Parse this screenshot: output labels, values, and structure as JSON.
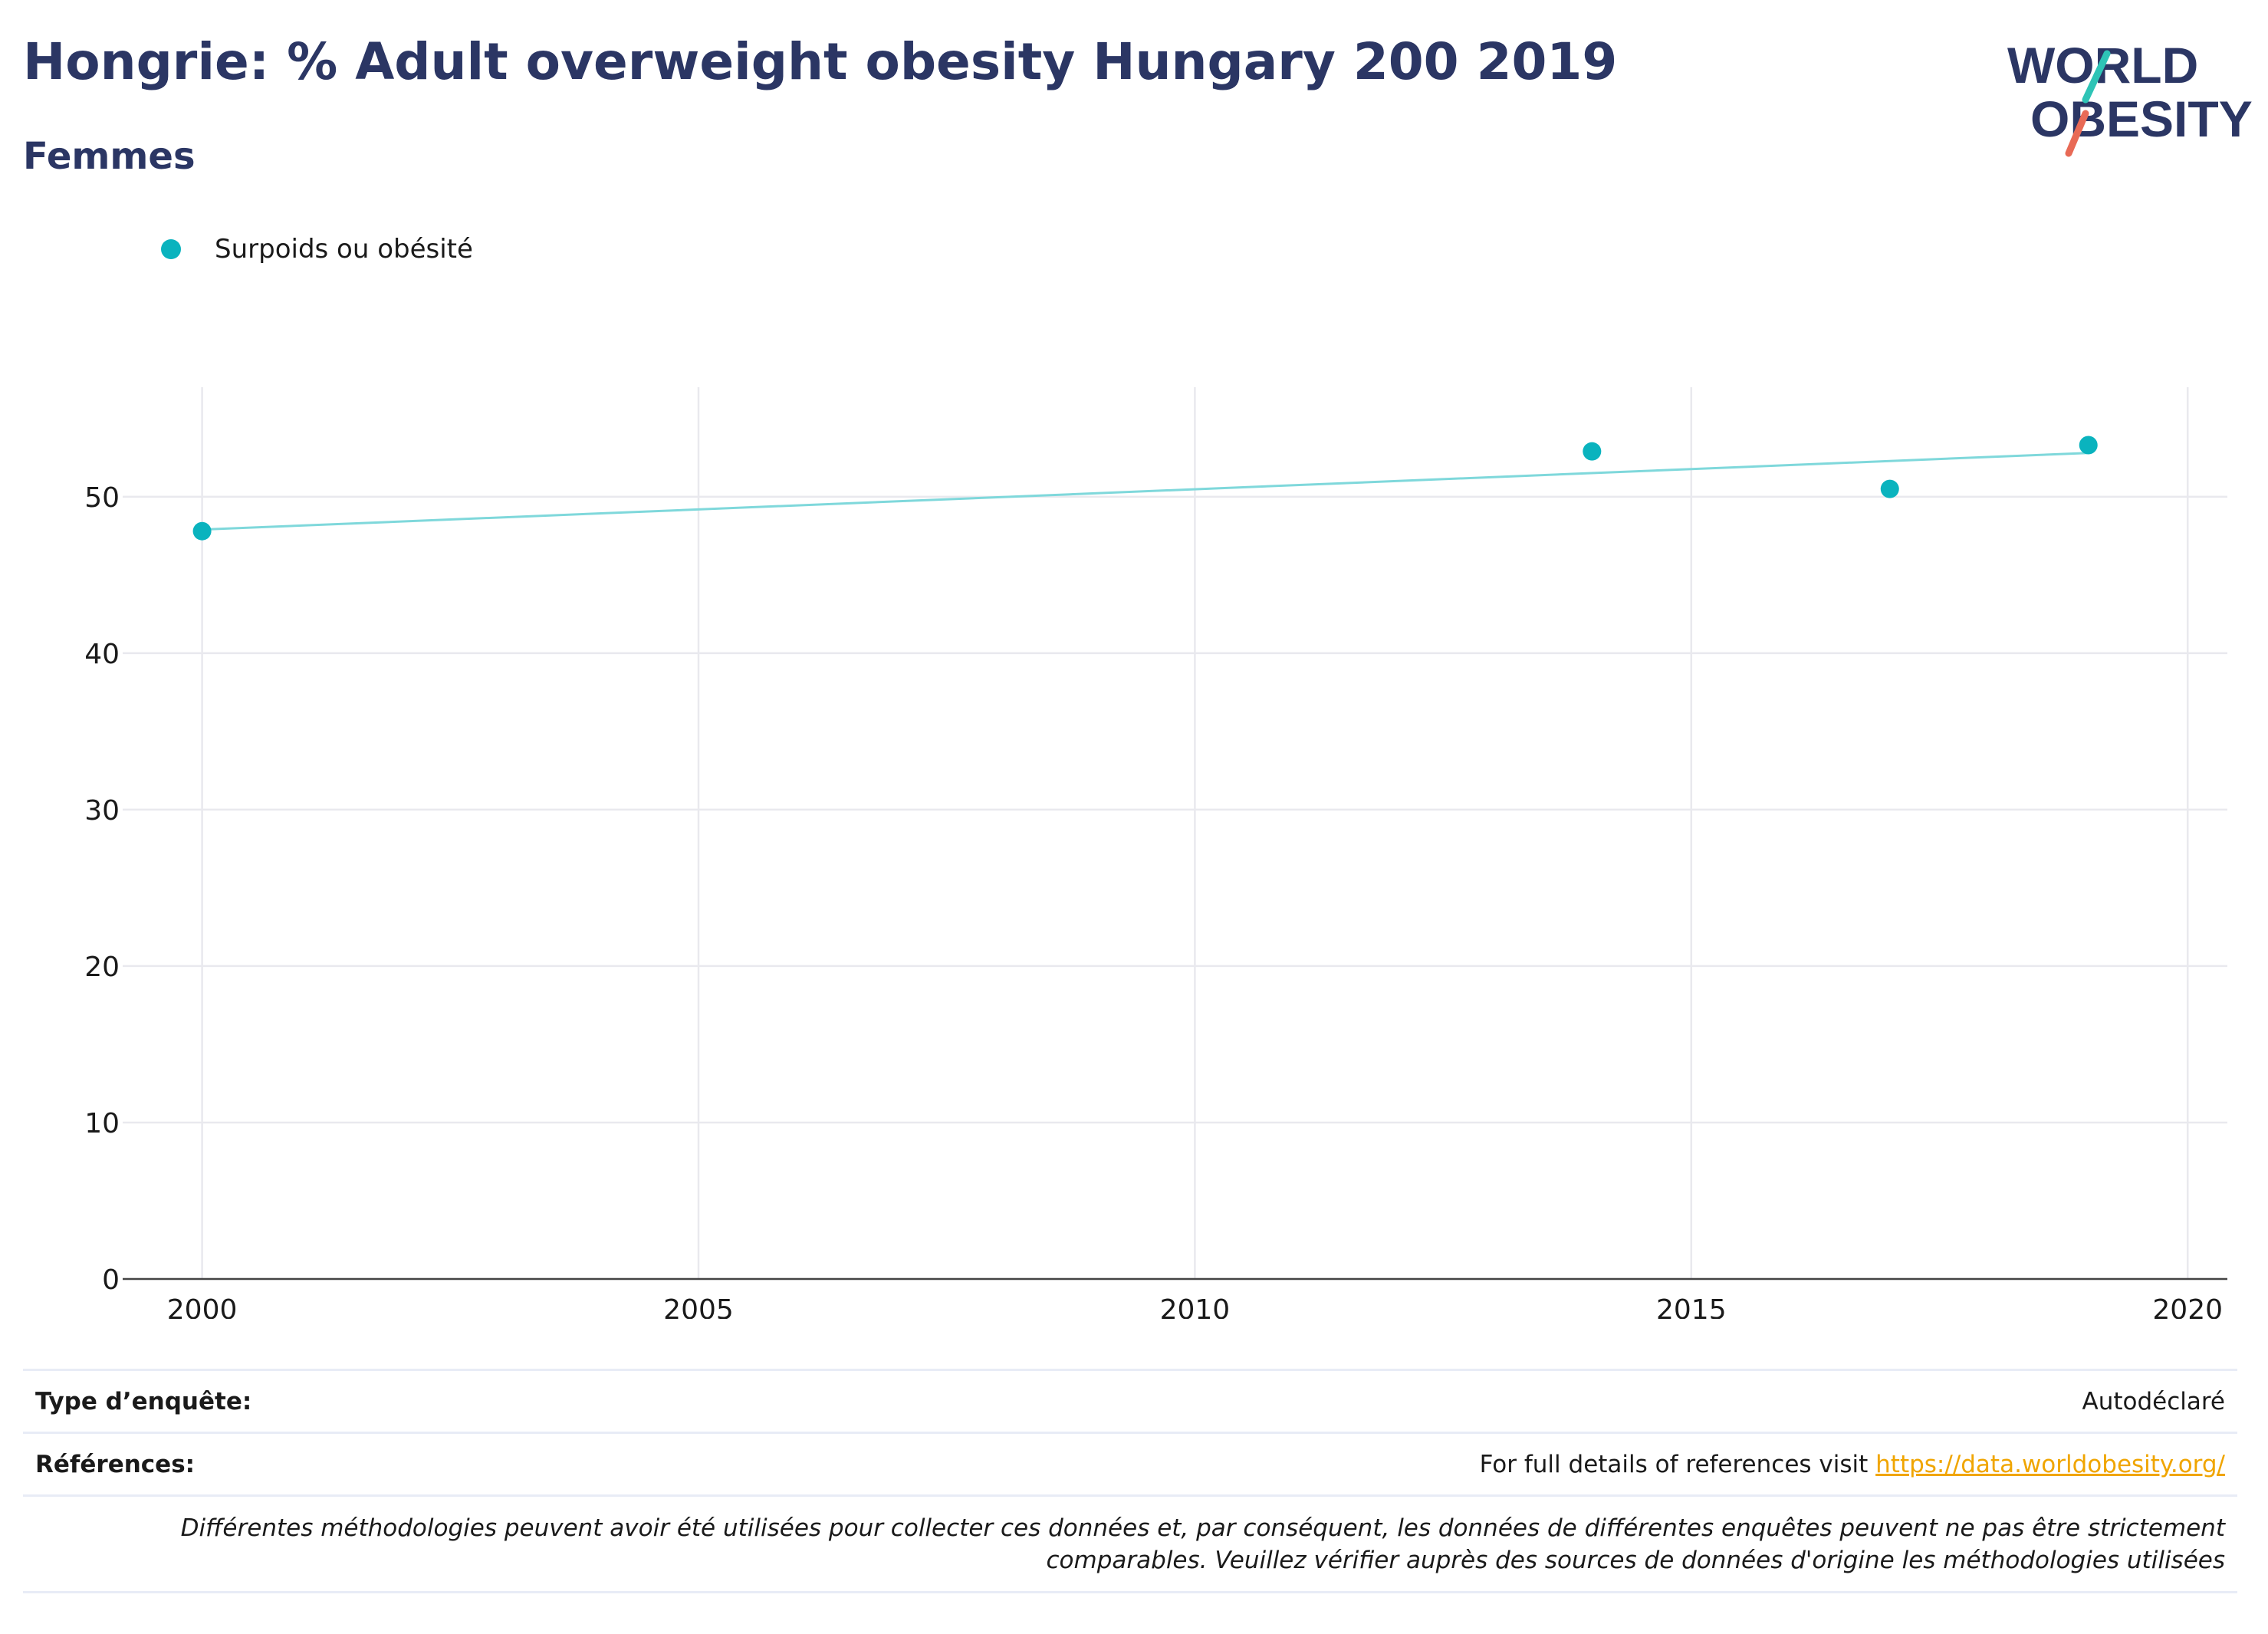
{
  "header": {
    "title": "Hongrie: % Adult overweight obesity Hungary 200 2019",
    "subtitle": "Femmes"
  },
  "logo": {
    "line1": "WORLD",
    "line2": "OBESITY",
    "colors": {
      "text": "#2b3664",
      "slash_top": "#2ec4b6",
      "slash_bottom": "#e86a56"
    }
  },
  "legend": {
    "items": [
      {
        "label": "Surpoids ou obésité",
        "color": "#0ab3be"
      }
    ]
  },
  "chart_data": {
    "type": "scatter",
    "title": "",
    "xlabel": "",
    "ylabel": "",
    "xlim": [
      1999.2,
      2020.4
    ],
    "ylim": [
      0,
      57
    ],
    "x_ticks": [
      2000,
      2005,
      2010,
      2015,
      2020
    ],
    "y_ticks": [
      0,
      10,
      20,
      30,
      40,
      50
    ],
    "grid": true,
    "legend_position": "top-left",
    "series": [
      {
        "name": "Surpoids ou obésité",
        "color": "#0ab3be",
        "points": [
          {
            "x": 2000,
            "y": 47.8
          },
          {
            "x": 2014,
            "y": 52.9
          },
          {
            "x": 2017,
            "y": 50.5
          },
          {
            "x": 2019,
            "y": 53.3
          }
        ]
      }
    ],
    "trendline": {
      "color": "#7fd8db",
      "points": [
        {
          "x": 2000,
          "y": 47.9
        },
        {
          "x": 2019,
          "y": 52.8
        }
      ]
    }
  },
  "footer": {
    "survey_type_label": "Type d’enquête:",
    "survey_type_value": "Autodéclaré",
    "references_label": "Références:",
    "references_text": "For full details of references visit ",
    "references_link": "https://data.worldobesity.org/",
    "note": "Différentes méthodologies peuvent avoir été utilisées pour collecter ces données et, par conséquent, les données de différentes enquêtes peuvent ne pas être strictement comparables. Veuillez vérifier auprès des sources de données d'origine les méthodologies utilisées"
  }
}
